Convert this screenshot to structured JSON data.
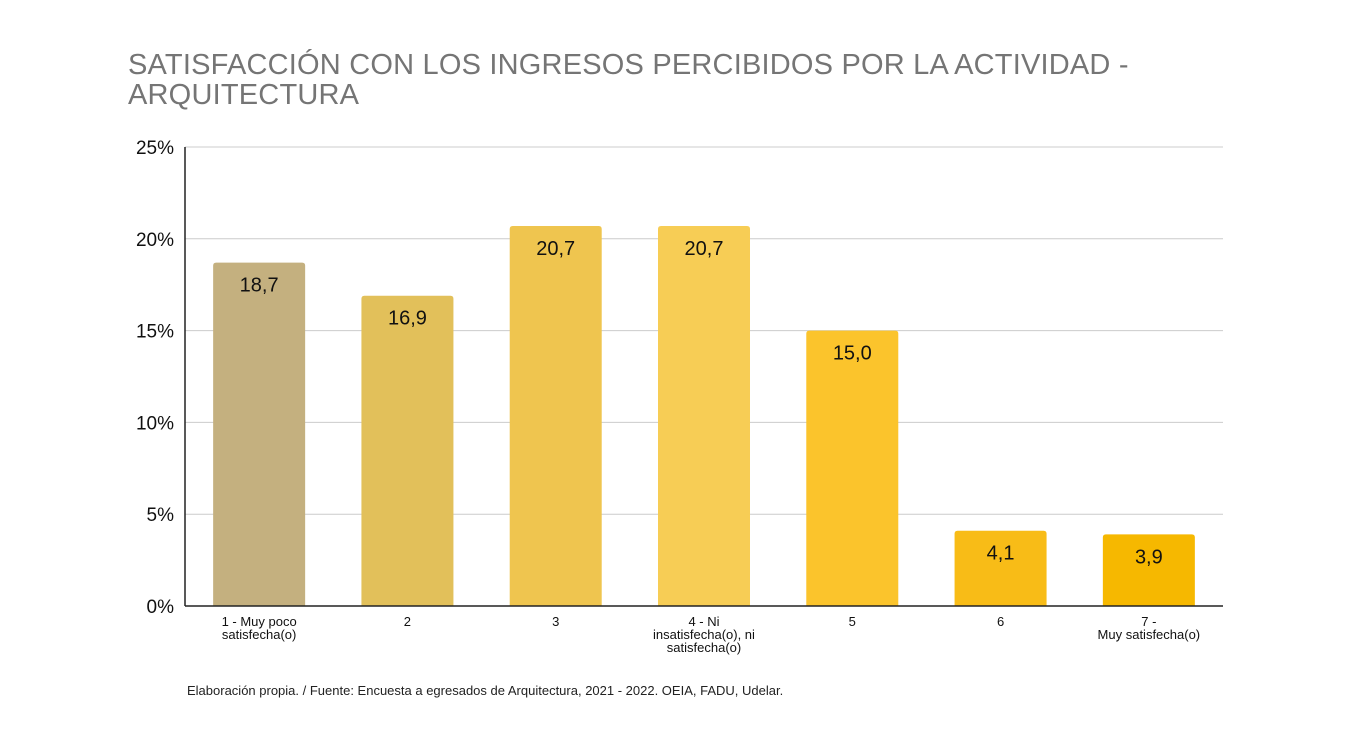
{
  "chart_data": {
    "type": "bar",
    "title": "SATISFACCIÓN CON LOS INGRESOS PERCIBIDOS POR LA ACTIVIDAD -\nARQUITECTURA",
    "categories": [
      "1 - Muy poco\nsatisfecha(o)",
      "2",
      "3",
      "4 - Ni\ninsatisfecha(o), ni\nsatisfecha(o)",
      "5",
      "6",
      "7 -\nMuy satisfecha(o)"
    ],
    "values": [
      18.7,
      16.9,
      20.7,
      20.7,
      15.0,
      4.1,
      3.9
    ],
    "data_labels": [
      "18,7",
      "16,9",
      "20,7",
      "20,7",
      "15,0",
      "4,1",
      "3,9"
    ],
    "bar_colors": [
      "#c4b07f",
      "#e2c05a",
      "#efc54f",
      "#f7cd55",
      "#fbc42c",
      "#f8bc17",
      "#f6b800"
    ],
    "ylim": [
      0,
      25
    ],
    "yticks": [
      0,
      5,
      10,
      15,
      20,
      25
    ],
    "ytick_labels": [
      "0%",
      "5%",
      "10%",
      "15%",
      "20%",
      "25%"
    ],
    "xlabel": "",
    "ylabel": "",
    "grid": true,
    "legend": "none"
  },
  "footnote": "Elaboración propia. / Fuente: Encuesta a egresados de Arquitectura, 2021 - 2022. OEIA, FADU, Udelar.",
  "colors": {
    "title": "#757575",
    "gridline": "#cccccc",
    "axis": "#222222",
    "text": "#111111"
  }
}
